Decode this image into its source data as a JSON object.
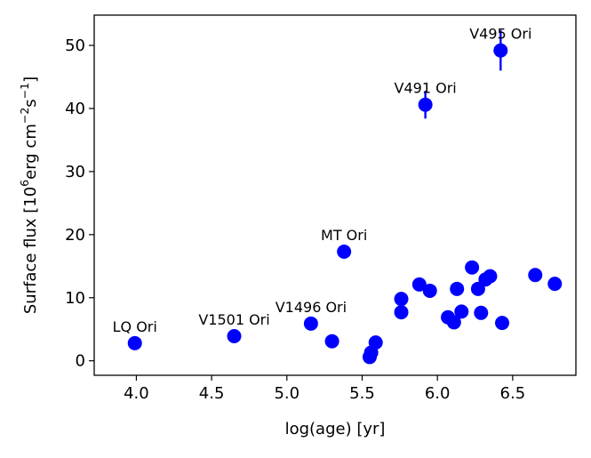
{
  "chart_data": {
    "type": "scatter",
    "title": "",
    "xlabel": "log(age) [yr]",
    "ylabel": {
      "prefix": "Surface flux [10",
      "sup1": "6",
      "mid1": "erg cm",
      "sup2": "−2",
      "mid2": "s",
      "sup3": "−1",
      "suffix": "]"
    },
    "xlim": [
      3.72,
      6.92
    ],
    "ylim": [
      -2.3,
      54.8
    ],
    "xticks": [
      4.0,
      4.5,
      5.0,
      5.5,
      6.0,
      6.5
    ],
    "xtick_labels": [
      "4.0",
      "4.5",
      "5.0",
      "5.5",
      "6.0",
      "6.5"
    ],
    "yticks": [
      0,
      10,
      20,
      30,
      40,
      50
    ],
    "ytick_labels": [
      "0",
      "10",
      "20",
      "30",
      "40",
      "50"
    ],
    "marker_color": "#0000ff",
    "points": [
      {
        "x": 3.99,
        "y": 2.8
      },
      {
        "x": 4.65,
        "y": 3.9
      },
      {
        "x": 5.16,
        "y": 5.9
      },
      {
        "x": 5.3,
        "y": 3.1
      },
      {
        "x": 5.38,
        "y": 17.3
      },
      {
        "x": 5.55,
        "y": 0.6
      },
      {
        "x": 5.56,
        "y": 1.3
      },
      {
        "x": 5.59,
        "y": 2.9
      },
      {
        "x": 5.76,
        "y": 9.8
      },
      {
        "x": 5.76,
        "y": 7.7
      },
      {
        "x": 5.88,
        "y": 12.1
      },
      {
        "x": 5.92,
        "y": 40.6,
        "yerr": 2.2
      },
      {
        "x": 5.95,
        "y": 11.1
      },
      {
        "x": 6.07,
        "y": 6.9
      },
      {
        "x": 6.11,
        "y": 6.1
      },
      {
        "x": 6.13,
        "y": 11.4
      },
      {
        "x": 6.16,
        "y": 7.8
      },
      {
        "x": 6.23,
        "y": 14.8
      },
      {
        "x": 6.27,
        "y": 11.4
      },
      {
        "x": 6.29,
        "y": 7.6
      },
      {
        "x": 6.32,
        "y": 12.9
      },
      {
        "x": 6.35,
        "y": 13.4
      },
      {
        "x": 6.42,
        "y": 49.2,
        "yerr": 3.2
      },
      {
        "x": 6.43,
        "y": 6.0
      },
      {
        "x": 6.65,
        "y": 13.6
      },
      {
        "x": 6.78,
        "y": 12.2
      }
    ],
    "annotations": [
      {
        "text": "LQ Ori",
        "x": 3.99,
        "y": 2.8
      },
      {
        "text": "V1501 Ori",
        "x": 4.65,
        "y": 3.9
      },
      {
        "text": "V1496 Ori",
        "x": 5.16,
        "y": 5.9
      },
      {
        "text": "MT Ori",
        "x": 5.38,
        "y": 17.3
      },
      {
        "text": "V491 Ori",
        "x": 5.92,
        "y": 40.6
      },
      {
        "text": "V495 Ori",
        "x": 6.42,
        "y": 49.2
      }
    ]
  }
}
